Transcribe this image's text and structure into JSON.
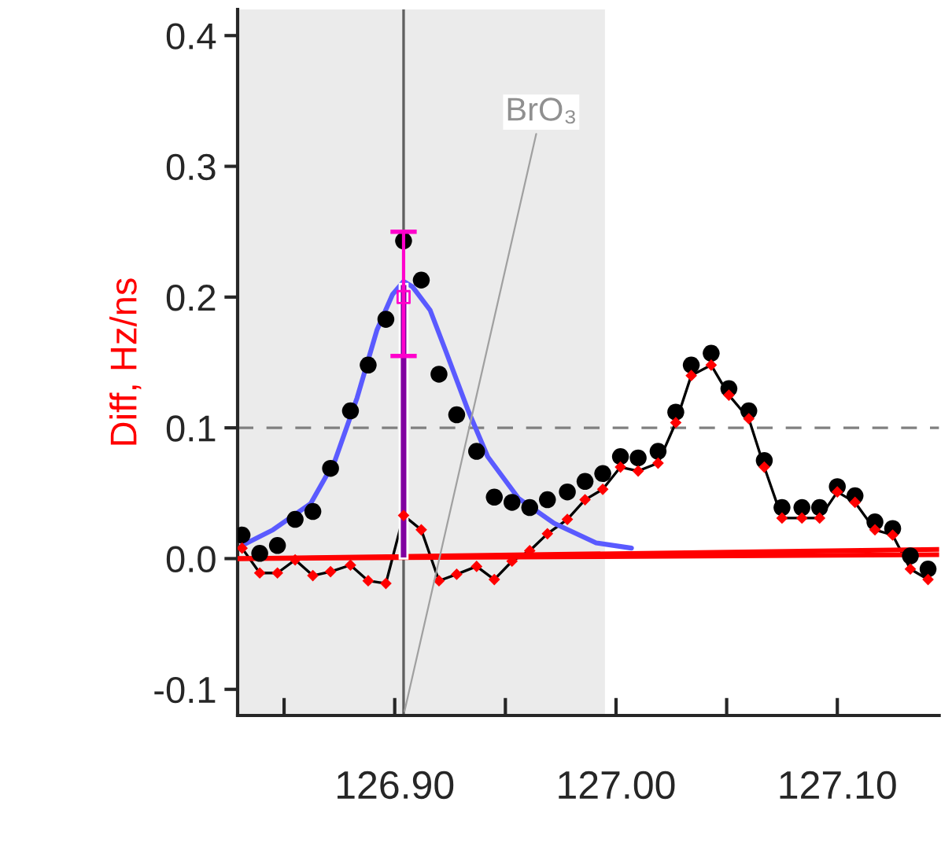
{
  "chart_data": {
    "type": "scatter",
    "ylabel": "Diff, Hz/ns",
    "x": [
      126.831,
      126.839,
      126.847,
      126.855,
      126.863,
      126.871,
      126.88,
      126.888,
      126.896,
      126.904,
      126.912,
      126.92,
      126.928,
      126.937,
      126.945,
      126.953,
      126.961,
      126.969,
      126.978,
      126.986,
      126.994,
      127.002,
      127.01,
      127.019,
      127.027,
      127.034,
      127.043,
      127.051,
      127.06,
      127.067,
      127.075,
      127.084,
      127.092,
      127.1,
      127.108,
      127.117,
      127.125,
      127.133,
      127.141
    ],
    "series": [
      {
        "color": "#000000",
        "marker": "circle",
        "values": [
          0.018,
          0.004,
          0.01,
          0.03,
          0.036,
          0.069,
          0.113,
          0.148,
          0.183,
          0.243,
          0.213,
          0.141,
          0.11,
          0.082,
          0.047,
          0.043,
          0.039,
          0.045,
          0.051,
          0.059,
          0.065,
          0.078,
          0.077,
          0.082,
          0.112,
          0.148,
          0.157,
          0.13,
          0.113,
          0.075,
          0.039,
          0.039,
          0.039,
          0.055,
          0.048,
          0.028,
          0.023,
          0.002,
          -0.008
        ]
      },
      {
        "type": "line",
        "color": "#000000",
        "marker": "none",
        "values": [
          0.008,
          -0.011,
          -0.011,
          -0.001,
          -0.013,
          -0.01,
          -0.005,
          -0.017,
          -0.019,
          0.033,
          0.022,
          -0.017,
          -0.012,
          -0.006,
          -0.016,
          -0.002,
          0.006,
          0.019,
          0.03,
          0.045,
          0.053,
          0.07,
          0.067,
          0.073,
          0.104,
          0.14,
          0.148,
          0.125,
          0.107,
          0.07,
          0.031,
          0.031,
          0.031,
          0.051,
          0.043,
          0.022,
          0.018,
          -0.008,
          -0.016
        ]
      },
      {
        "type": "scatter",
        "color": "#ff0000",
        "marker": "diamond",
        "values": [
          0.008,
          -0.011,
          -0.011,
          -0.001,
          -0.013,
          -0.01,
          -0.005,
          -0.017,
          -0.019,
          0.033,
          0.022,
          -0.017,
          -0.012,
          -0.006,
          -0.016,
          -0.002,
          0.006,
          0.019,
          0.03,
          0.045,
          0.053,
          0.07,
          0.067,
          0.073,
          0.104,
          0.14,
          0.148,
          0.125,
          0.107,
          0.07,
          0.031,
          0.031,
          0.031,
          0.051,
          0.043,
          0.022,
          0.018,
          -0.008,
          -0.016
        ]
      },
      {
        "type": "line",
        "color": "#5a5aff",
        "marker": "none",
        "x": [
          126.831,
          126.845,
          126.862,
          126.873,
          126.883,
          126.892,
          126.899,
          126.904,
          126.908,
          126.916,
          126.923,
          126.933,
          126.942,
          126.956,
          126.972,
          126.991,
          127.007
        ],
        "values": [
          0.01,
          0.022,
          0.042,
          0.075,
          0.123,
          0.175,
          0.202,
          0.212,
          0.208,
          0.19,
          0.159,
          0.114,
          0.078,
          0.046,
          0.027,
          0.012,
          0.008
        ]
      },
      {
        "type": "line",
        "color": "#ff0000",
        "marker": "none",
        "x": [
          126.829,
          127.146
        ],
        "values": [
          0.0,
          0.007
        ]
      },
      {
        "type": "line",
        "color": "#ff0000",
        "marker": "none",
        "x": [
          126.829,
          127.146
        ],
        "values": [
          0.0,
          0.003
        ]
      },
      {
        "type": "bar",
        "color": "#8000a0",
        "x": [
          126.904
        ],
        "values": [
          0.21
        ]
      },
      {
        "type": "scatter",
        "color": "#ff00cc",
        "marker": "square",
        "x": [
          126.904
        ],
        "values": [
          0.2
        ],
        "errors": [
          [
            0.155,
            0.25
          ]
        ]
      }
    ],
    "xlim": [
      126.829,
      127.146
    ],
    "xticks": [
      {
        "value": 126.85,
        "label": null
      },
      {
        "value": 126.9,
        "label": "126.90"
      },
      {
        "value": 126.95,
        "label": null
      },
      {
        "value": 127.0,
        "label": "127.00"
      },
      {
        "value": 127.05,
        "label": null
      },
      {
        "value": 127.1,
        "label": "127.10"
      }
    ],
    "ylim": [
      -0.12,
      0.42
    ],
    "yticks": [
      {
        "value": -0.1,
        "label": "-0.1"
      },
      {
        "value": 0,
        "label": "0.0"
      },
      {
        "value": 0.1,
        "label": "0.1"
      },
      {
        "value": 0.2,
        "label": "0.2"
      },
      {
        "value": 0.3,
        "label": "0.3"
      },
      {
        "value": 0.4,
        "label": "0.4"
      }
    ],
    "ref_lines": [
      {
        "axis": "y",
        "value": 0.1,
        "color": "#808080",
        "line_style": "dashed"
      },
      {
        "axis": "x",
        "value": 126.904,
        "color": "#606060",
        "line_style": "solid"
      }
    ],
    "bands": [
      {
        "axis": "x",
        "from": 126.829,
        "to": 126.995,
        "color": "#ebebeb"
      }
    ],
    "annotations": [
      {
        "text": "BrO₃",
        "x": 126.904,
        "y": -0.12
      }
    ],
    "grid": false,
    "legend": false
  }
}
